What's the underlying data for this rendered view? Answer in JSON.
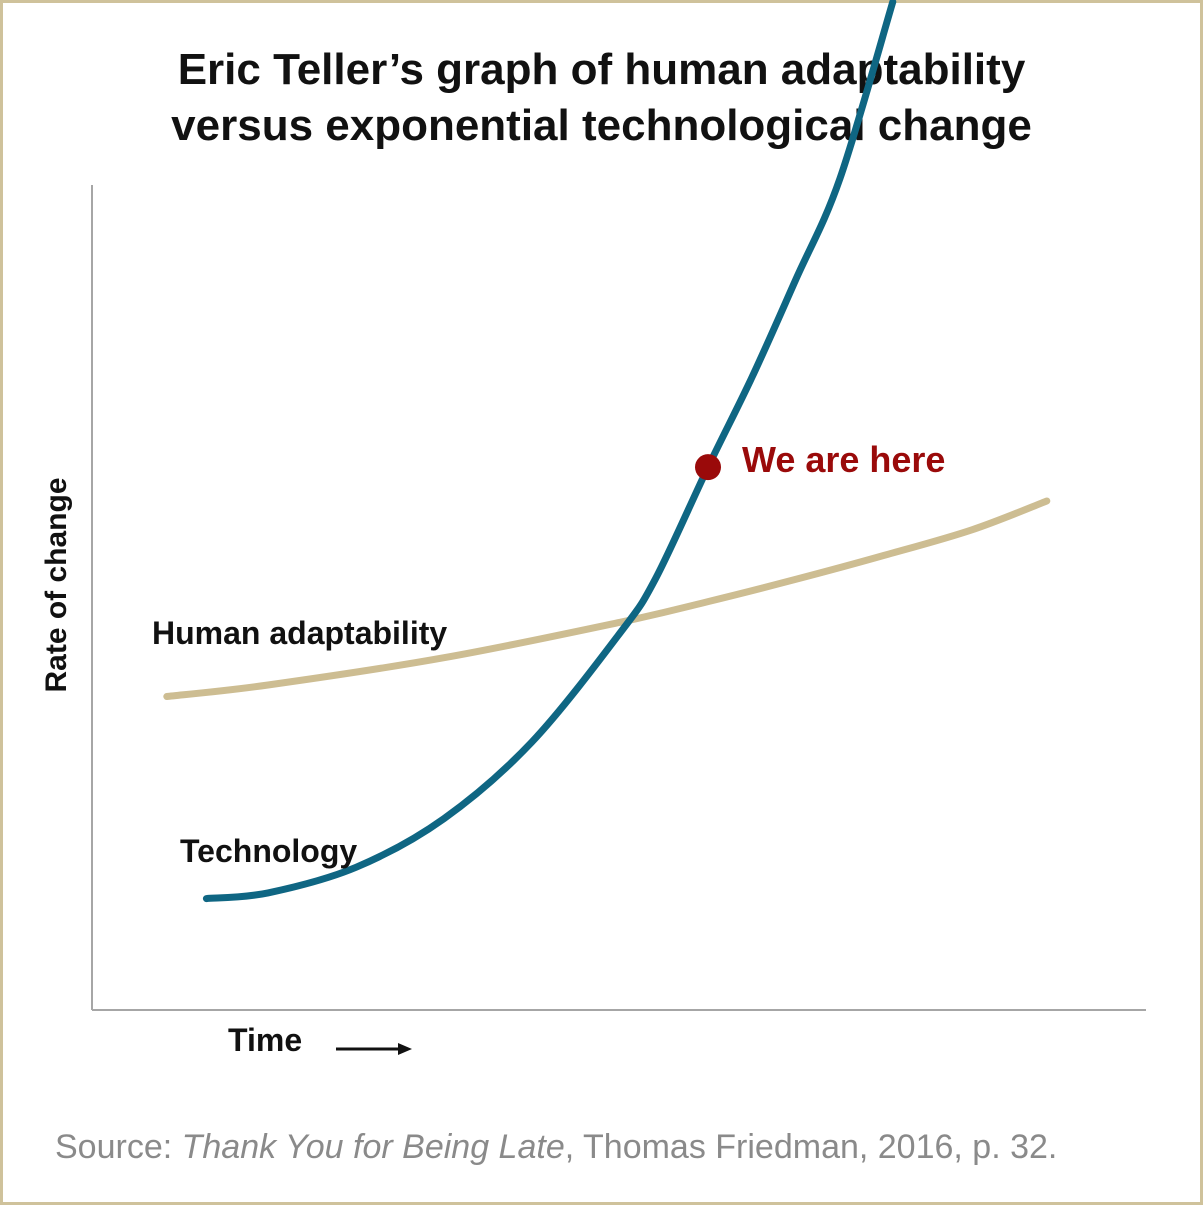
{
  "chart_data": {
    "type": "line",
    "title": [
      "Eric Teller’s graph of human adaptability",
      "versus exponential technological change"
    ],
    "xlabel": "Time",
    "ylabel": "Rate of change",
    "xlim": [
      0,
      100
    ],
    "ylim": [
      0,
      100
    ],
    "grid": false,
    "legend": "none",
    "colors": {
      "technology": "#0f6683",
      "human": "#cdbd92",
      "marker": "#9a0a0a",
      "axis": "#a6a6a6",
      "border": "#cfc29b"
    },
    "series": [
      {
        "name": "Human adaptability",
        "x": [
          8.5,
          20,
          40,
          60,
          70,
          80,
          90,
          100,
          108.5
        ],
        "y": [
          38.0,
          39.4,
          42.7,
          47.0,
          49.5,
          52.2,
          55.1,
          58.2,
          61.7
        ]
      },
      {
        "name": "Technology",
        "x": [
          13,
          20,
          30,
          40,
          50,
          60,
          64,
          70,
          75,
          80,
          85,
          91
        ],
        "y": [
          13.5,
          14.2,
          17.3,
          23.2,
          32.5,
          45.7,
          52.2,
          65.8,
          76.7,
          88.6,
          100.8,
          122.2
        ]
      }
    ],
    "annotations": [
      {
        "text": "We are here",
        "x": 70,
        "y": 65.8
      }
    ],
    "source": {
      "prefix": "Source: ",
      "book": "Thank You for Being Late",
      "suffix": ", Thomas Friedman, 2016, p. 32."
    }
  }
}
